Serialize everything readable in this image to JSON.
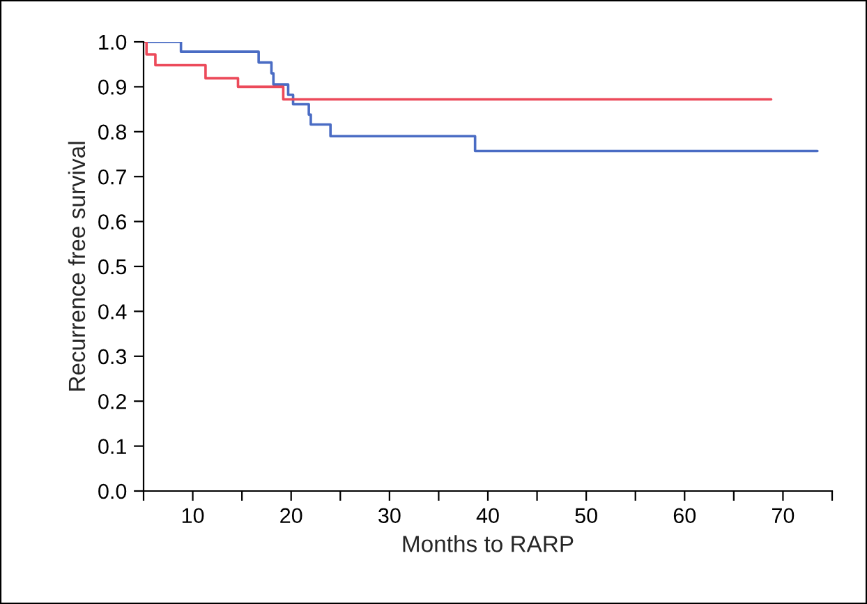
{
  "chart_data": {
    "type": "step",
    "xlabel": "Months to RARP",
    "ylabel": "Recurrence free survival",
    "series": [
      {
        "color": "#4a6cc4",
        "x": [
          5,
          8.8,
          16.7,
          18.0,
          18.2,
          19.7,
          20.2,
          21.8,
          22.0,
          24.0,
          38.7,
          73.5
        ],
        "values": [
          1.0,
          0.978,
          0.954,
          0.93,
          0.905,
          0.882,
          0.861,
          0.838,
          0.816,
          0.79,
          0.757,
          0.757
        ]
      },
      {
        "color": "#ec4a5a",
        "x": [
          5,
          5.3,
          6.2,
          11.3,
          14.6,
          19.2,
          68.8
        ],
        "values": [
          1.0,
          0.972,
          0.948,
          0.919,
          0.9,
          0.872,
          0.872
        ]
      }
    ],
    "xlim": [
      5,
      75
    ],
    "ylim": [
      0,
      1.0
    ],
    "xticks": [
      {
        "value": 5,
        "label": null
      },
      10,
      {
        "value": 15,
        "label": null
      },
      20,
      {
        "value": 25,
        "label": null
      },
      30,
      {
        "value": 35,
        "label": null
      },
      40,
      {
        "value": 45,
        "label": null
      },
      50,
      {
        "value": 55,
        "label": null
      },
      60,
      {
        "value": 65,
        "label": null
      },
      70,
      {
        "value": 75,
        "label": null
      }
    ],
    "yticks": [
      {
        "value": 0,
        "label": "0.0"
      },
      {
        "value": 0.1,
        "label": "0.1"
      },
      {
        "value": 0.2,
        "label": "0.2"
      },
      {
        "value": 0.3,
        "label": "0.3"
      },
      {
        "value": 0.4,
        "label": "0.4"
      },
      {
        "value": 0.5,
        "label": "0.5"
      },
      {
        "value": 0.6,
        "label": "0.6"
      },
      {
        "value": 0.7,
        "label": "0.7"
      },
      {
        "value": 0.8,
        "label": "0.8"
      },
      {
        "value": 0.9,
        "label": "0.9"
      },
      {
        "value": 1.0,
        "label": "1.0"
      }
    ],
    "grid": false,
    "legend": false
  }
}
